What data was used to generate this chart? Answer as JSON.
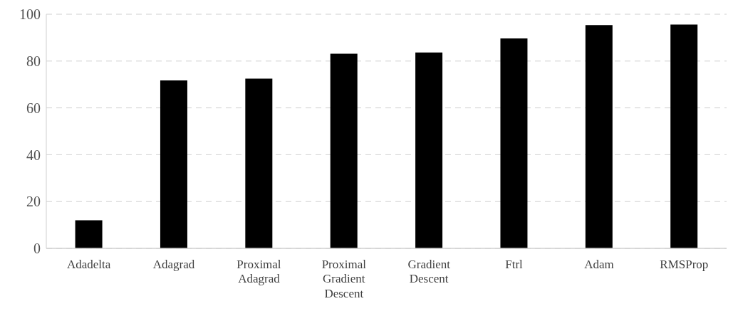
{
  "chart_data": {
    "type": "bar",
    "categories": [
      "Adadelta",
      "Adagrad",
      "Proximal Adagrad",
      "Proximal Gradient Descent",
      "Gradient Descent",
      "Ftrl",
      "Adam",
      "RMSProp"
    ],
    "values": [
      12.0,
      71.7,
      72.5,
      83.1,
      83.7,
      89.7,
      95.4,
      95.6
    ],
    "color": "#000000",
    "ylim": [
      0,
      100
    ],
    "yticks": [
      0,
      20,
      40,
      60,
      80,
      100
    ],
    "grid": "y"
  }
}
